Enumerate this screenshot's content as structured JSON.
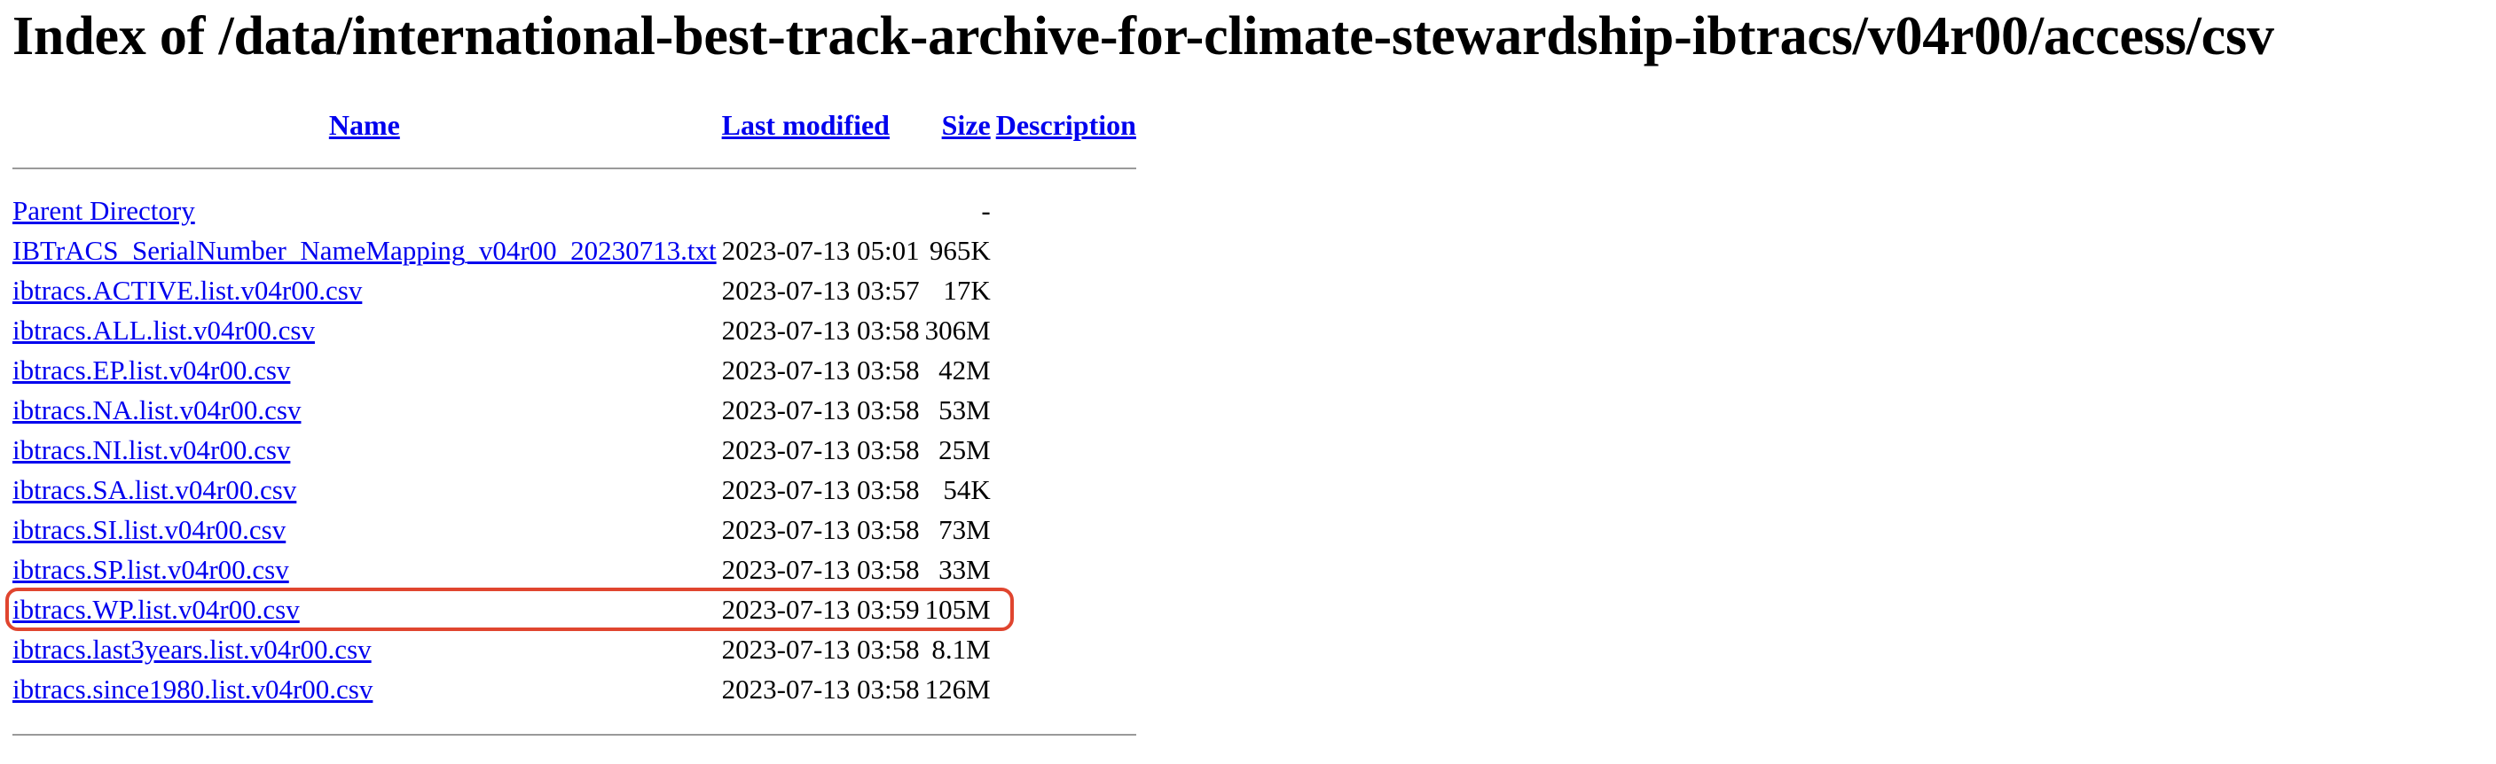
{
  "page": {
    "title": "Index of /data/international-best-track-archive-for-climate-stewardship-ibtracs/v04r00/access/csv"
  },
  "table": {
    "headers": {
      "name": "Name",
      "last_modified": "Last modified",
      "size": "Size",
      "description": "Description"
    },
    "rows": [
      {
        "name": "Parent Directory",
        "last_modified": "",
        "size": "-",
        "description": ""
      },
      {
        "name": "IBTrACS_SerialNumber_NameMapping_v04r00_20230713.txt",
        "last_modified": "2023-07-13 05:01",
        "size": "965K",
        "description": ""
      },
      {
        "name": "ibtracs.ACTIVE.list.v04r00.csv",
        "last_modified": "2023-07-13 03:57",
        "size": "17K",
        "description": ""
      },
      {
        "name": "ibtracs.ALL.list.v04r00.csv",
        "last_modified": "2023-07-13 03:58",
        "size": "306M",
        "description": ""
      },
      {
        "name": "ibtracs.EP.list.v04r00.csv",
        "last_modified": "2023-07-13 03:58",
        "size": "42M",
        "description": ""
      },
      {
        "name": "ibtracs.NA.list.v04r00.csv",
        "last_modified": "2023-07-13 03:58",
        "size": "53M",
        "description": ""
      },
      {
        "name": "ibtracs.NI.list.v04r00.csv",
        "last_modified": "2023-07-13 03:58",
        "size": "25M",
        "description": ""
      },
      {
        "name": "ibtracs.SA.list.v04r00.csv",
        "last_modified": "2023-07-13 03:58",
        "size": "54K",
        "description": ""
      },
      {
        "name": "ibtracs.SI.list.v04r00.csv",
        "last_modified": "2023-07-13 03:58",
        "size": "73M",
        "description": ""
      },
      {
        "name": "ibtracs.SP.list.v04r00.csv",
        "last_modified": "2023-07-13 03:58",
        "size": "33M",
        "description": ""
      },
      {
        "name": "ibtracs.WP.list.v04r00.csv",
        "last_modified": "2023-07-13 03:59",
        "size": "105M",
        "description": ""
      },
      {
        "name": "ibtracs.last3years.list.v04r00.csv",
        "last_modified": "2023-07-13 03:58",
        "size": "8.1M",
        "description": ""
      },
      {
        "name": "ibtracs.since1980.list.v04r00.csv",
        "last_modified": "2023-07-13 03:58",
        "size": "126M",
        "description": ""
      }
    ]
  },
  "colors": {
    "link": "#0000ee",
    "highlight": "#e0452f",
    "rule": "#9a9a9a"
  }
}
